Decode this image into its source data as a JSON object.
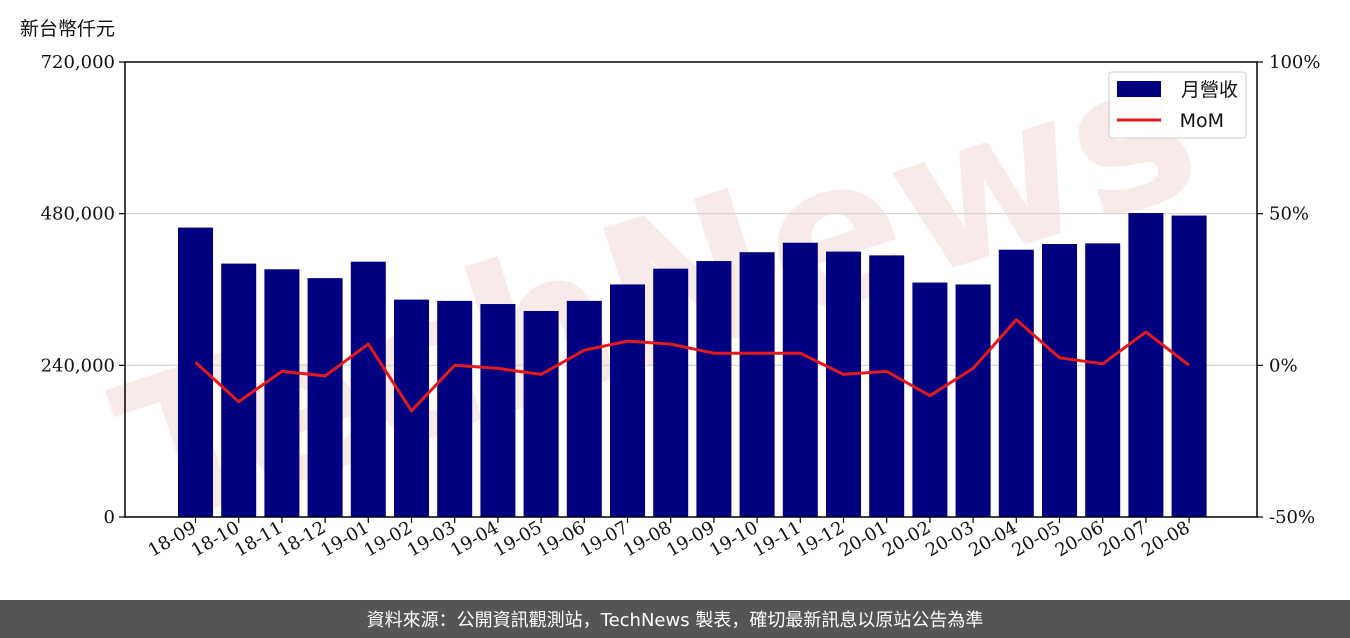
{
  "chart_data": {
    "type": "bar",
    "y_unit_label": "新台幣仟元",
    "categories": [
      "18-09",
      "18-10",
      "18-11",
      "18-12",
      "19-01",
      "19-02",
      "19-03",
      "19-04",
      "19-05",
      "19-06",
      "19-07",
      "19-08",
      "19-09",
      "19-10",
      "19-11",
      "19-12",
      "20-01",
      "20-02",
      "20-03",
      "20-04",
      "20-05",
      "20-06",
      "20-07",
      "20-08"
    ],
    "series": [
      {
        "name": "月營收",
        "type": "bar",
        "axis": "left",
        "color": "#000080",
        "values": [
          458000,
          401000,
          392000,
          378000,
          404000,
          344000,
          342000,
          337000,
          326000,
          342000,
          368000,
          393000,
          405000,
          419000,
          434000,
          420000,
          414000,
          371000,
          368000,
          423000,
          432000,
          433000,
          481000,
          477000
        ]
      },
      {
        "name": "MoM",
        "type": "line",
        "axis": "right",
        "color": "#e31a1c",
        "values": [
          1,
          -12,
          -2,
          -3.5,
          7,
          -15,
          0,
          -1,
          -3,
          5,
          8,
          7,
          4,
          4,
          4,
          -3,
          -2,
          -10,
          -1,
          15,
          2.5,
          0.5,
          11,
          0
        ]
      }
    ],
    "ylim_left": [
      0,
      720000
    ],
    "ylim_right": [
      -50,
      100
    ],
    "yticks_left": [
      {
        "value": 0,
        "label": "0"
      },
      {
        "value": 240000,
        "label": "240,000"
      },
      {
        "value": 480000,
        "label": "480,000"
      },
      {
        "value": 720000,
        "label": "720,000"
      }
    ],
    "yticks_right": [
      {
        "value": -50,
        "label": "-50%"
      },
      {
        "value": 0,
        "label": "0%"
      },
      {
        "value": 50,
        "label": "50%"
      },
      {
        "value": 100,
        "label": "100%"
      }
    ],
    "grid": "horizontal",
    "legend_position": "top-right"
  },
  "watermark": "TechNews",
  "footer": "資料來源：公開資訊觀測站，TechNews 製表，確切最新訊息以原站公告為準"
}
